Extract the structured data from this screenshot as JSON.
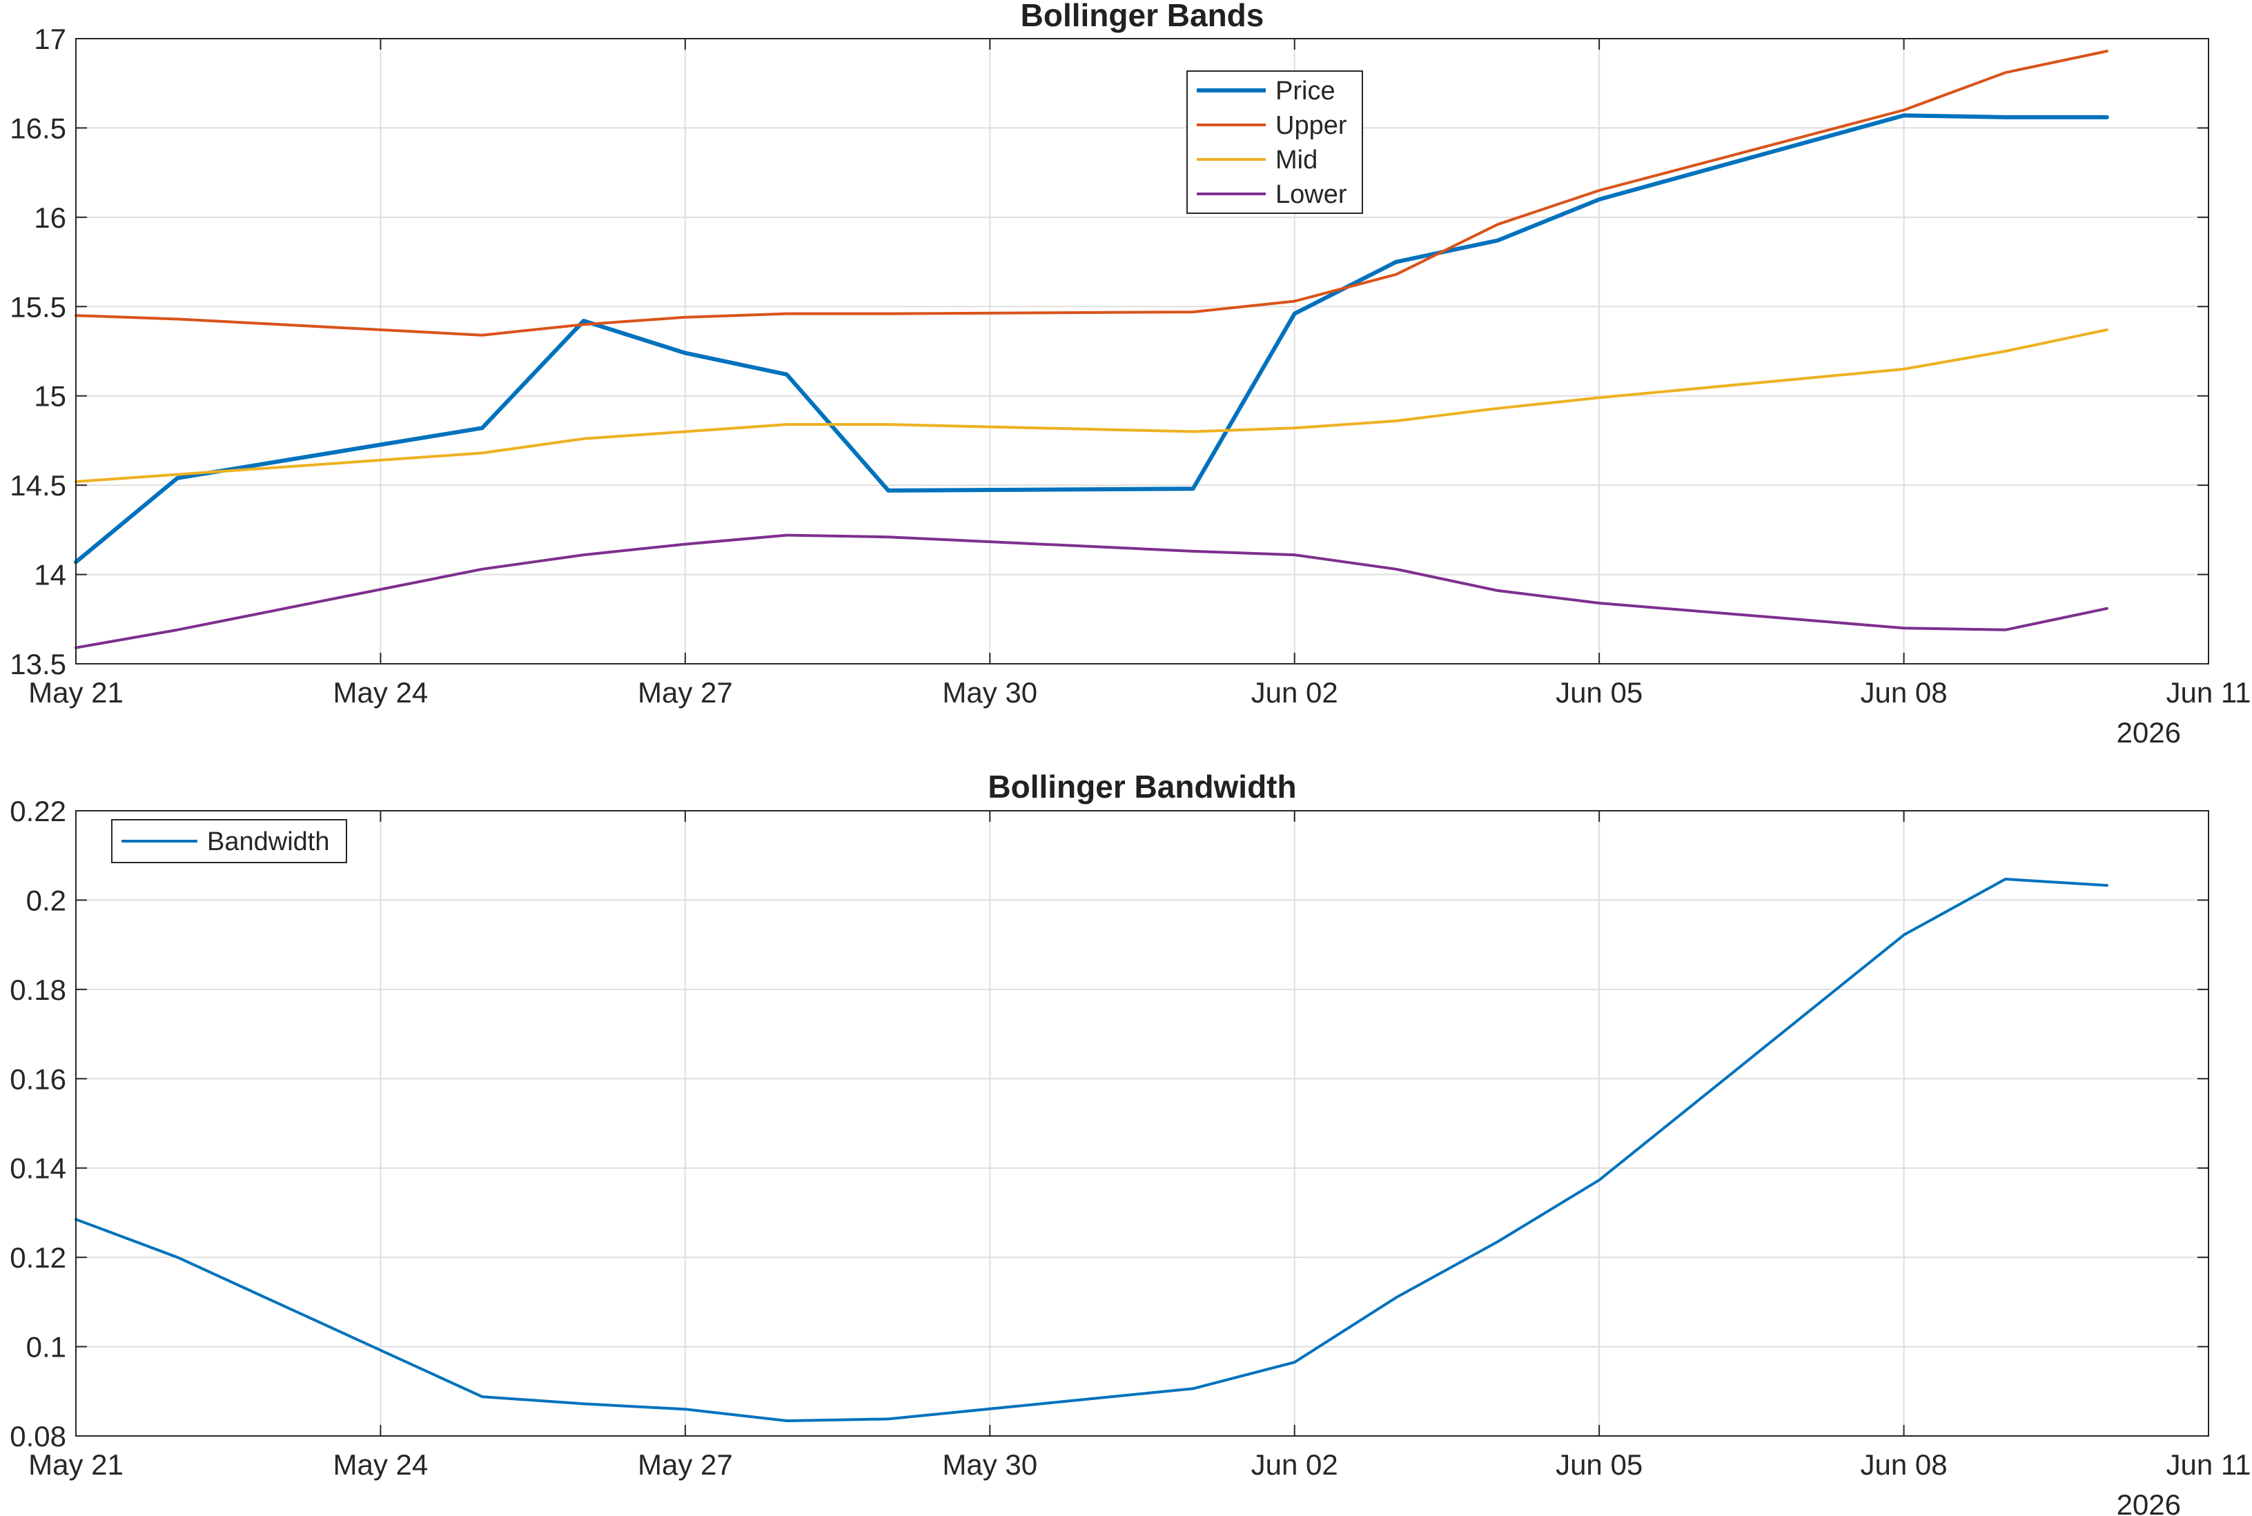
{
  "chart_data": [
    {
      "type": "line",
      "title": "Bollinger Bands",
      "xlabel": "",
      "ylabel": "",
      "x": [
        "2026-05-21",
        "2026-05-22",
        "2026-05-25",
        "2026-05-26",
        "2026-05-27",
        "2026-05-28",
        "2026-05-29",
        "2026-06-01",
        "2026-06-02",
        "2026-06-03",
        "2026-06-04",
        "2026-06-05",
        "2026-06-08",
        "2026-06-09",
        "2026-06-10"
      ],
      "xlim": [
        "2026-05-21",
        "2026-06-11"
      ],
      "ylim": [
        13.5,
        17
      ],
      "x_ticks": [
        "May 21",
        "May 24",
        "May 27",
        "May 30",
        "Jun 02",
        "Jun 05",
        "Jun 08",
        "Jun 11"
      ],
      "y_ticks": [
        "13.5",
        "14",
        "14.5",
        "15",
        "15.5",
        "16",
        "16.5",
        "17"
      ],
      "x_year_label": "2026",
      "grid": true,
      "legend_position": "top-center",
      "series": [
        {
          "name": "Price",
          "color": "#0072BD",
          "values": [
            14.07,
            14.54,
            14.82,
            15.42,
            15.24,
            15.12,
            14.47,
            14.48,
            15.46,
            15.75,
            15.87,
            16.1,
            16.57,
            16.56,
            16.56
          ]
        },
        {
          "name": "Upper",
          "color": "#D95319",
          "values": [
            15.45,
            15.43,
            15.34,
            15.4,
            15.44,
            15.46,
            15.46,
            15.47,
            15.53,
            15.68,
            15.96,
            16.15,
            16.6,
            16.81,
            16.93
          ]
        },
        {
          "name": "Mid",
          "color": "#EDB120",
          "values": [
            14.52,
            14.56,
            14.68,
            14.76,
            14.8,
            14.84,
            14.84,
            14.8,
            14.82,
            14.86,
            14.93,
            14.99,
            15.15,
            15.25,
            15.37
          ]
        },
        {
          "name": "Lower",
          "color": "#7E2F8E",
          "values": [
            13.59,
            13.69,
            14.03,
            14.11,
            14.17,
            14.22,
            14.21,
            14.13,
            14.11,
            14.03,
            13.91,
            13.84,
            13.7,
            13.69,
            13.81
          ]
        }
      ]
    },
    {
      "type": "line",
      "title": "Bollinger Bandwidth",
      "xlabel": "",
      "ylabel": "",
      "x": [
        "2026-05-21",
        "2026-05-22",
        "2026-05-25",
        "2026-05-26",
        "2026-05-27",
        "2026-05-28",
        "2026-05-29",
        "2026-06-01",
        "2026-06-02",
        "2026-06-03",
        "2026-06-04",
        "2026-06-05",
        "2026-06-08",
        "2026-06-09",
        "2026-06-10"
      ],
      "xlim": [
        "2026-05-21",
        "2026-06-11"
      ],
      "ylim": [
        0.08,
        0.22
      ],
      "x_ticks": [
        "May 21",
        "May 24",
        "May 27",
        "May 30",
        "Jun 02",
        "Jun 05",
        "Jun 08",
        "Jun 11"
      ],
      "y_ticks": [
        "0.08",
        "0.1",
        "0.12",
        "0.14",
        "0.16",
        "0.18",
        "0.2",
        "0.22"
      ],
      "x_year_label": "2026",
      "grid": true,
      "legend_position": "top-left",
      "series": [
        {
          "name": "Bandwidth",
          "color": "#0072BD",
          "values": [
            0.1285,
            0.12,
            0.0888,
            0.0872,
            0.086,
            0.0834,
            0.0838,
            0.0906,
            0.0965,
            0.111,
            0.1235,
            0.1373,
            0.1922,
            0.2047,
            0.2033
          ]
        }
      ]
    }
  ]
}
